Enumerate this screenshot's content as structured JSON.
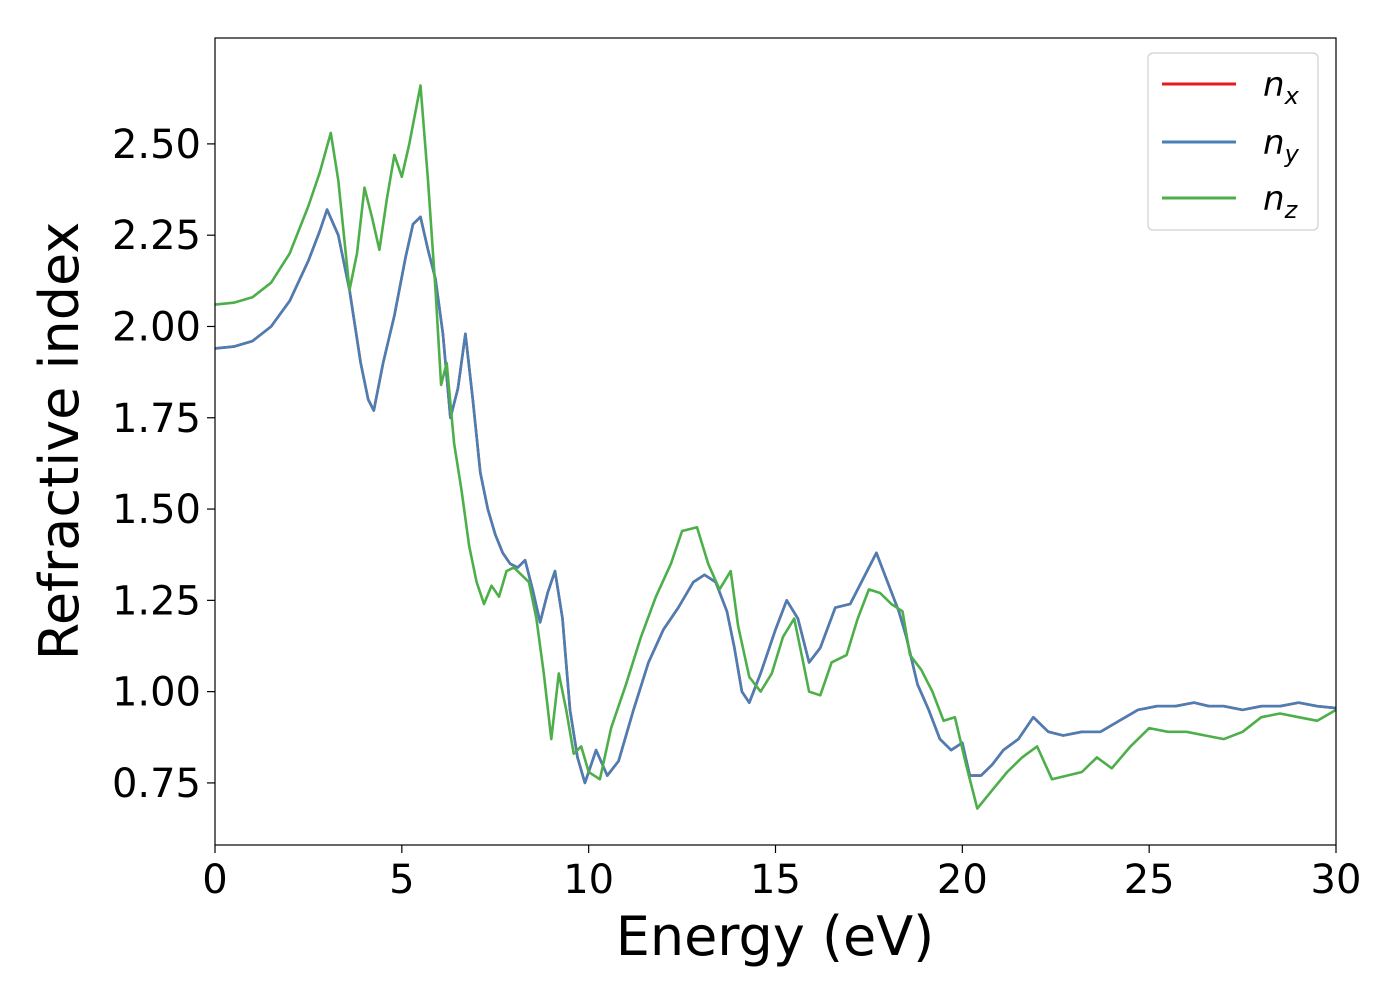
{
  "chart_data": {
    "type": "line",
    "title": "",
    "xlabel": "Energy (eV)",
    "ylabel": "Refractive index",
    "xlim": [
      0,
      30
    ],
    "ylim": [
      0.58,
      2.79
    ],
    "xticks": [
      0,
      5,
      10,
      15,
      20,
      25,
      30
    ],
    "xtick_labels": [
      "0",
      "5",
      "10",
      "15",
      "20",
      "25",
      "30"
    ],
    "yticks": [
      0.75,
      1.0,
      1.25,
      1.5,
      1.75,
      2.0,
      2.25,
      2.5
    ],
    "ytick_labels": [
      "0.75",
      "1.00",
      "1.25",
      "1.50",
      "1.75",
      "2.00",
      "2.25",
      "2.50"
    ],
    "grid": false,
    "legend_position": "top-right",
    "series": [
      {
        "name": "n",
        "subscript": "x",
        "color": "#e41a1c",
        "points": [
          [
            0,
            1.94
          ],
          [
            0.5,
            1.945
          ],
          [
            1,
            1.96
          ],
          [
            1.5,
            2.0
          ],
          [
            2,
            2.07
          ],
          [
            2.5,
            2.18
          ],
          [
            2.8,
            2.26
          ],
          [
            3.0,
            2.32
          ],
          [
            3.3,
            2.25
          ],
          [
            3.6,
            2.1
          ],
          [
            3.9,
            1.9
          ],
          [
            4.1,
            1.8
          ],
          [
            4.25,
            1.77
          ],
          [
            4.5,
            1.9
          ],
          [
            4.8,
            2.03
          ],
          [
            5.1,
            2.19
          ],
          [
            5.3,
            2.28
          ],
          [
            5.5,
            2.3
          ],
          [
            5.7,
            2.21
          ],
          [
            5.9,
            2.13
          ],
          [
            6.1,
            1.98
          ],
          [
            6.3,
            1.75
          ],
          [
            6.5,
            1.83
          ],
          [
            6.7,
            1.98
          ],
          [
            6.9,
            1.8
          ],
          [
            7.1,
            1.6
          ],
          [
            7.3,
            1.5
          ],
          [
            7.5,
            1.43
          ],
          [
            7.7,
            1.38
          ],
          [
            7.9,
            1.35
          ],
          [
            8.1,
            1.34
          ],
          [
            8.3,
            1.36
          ],
          [
            8.5,
            1.28
          ],
          [
            8.7,
            1.19
          ],
          [
            8.9,
            1.27
          ],
          [
            9.1,
            1.33
          ],
          [
            9.3,
            1.2
          ],
          [
            9.5,
            0.95
          ],
          [
            9.7,
            0.82
          ],
          [
            9.9,
            0.75
          ],
          [
            10.2,
            0.84
          ],
          [
            10.5,
            0.77
          ],
          [
            10.8,
            0.81
          ],
          [
            11.2,
            0.95
          ],
          [
            11.6,
            1.08
          ],
          [
            12.0,
            1.17
          ],
          [
            12.4,
            1.23
          ],
          [
            12.8,
            1.3
          ],
          [
            13.1,
            1.32
          ],
          [
            13.4,
            1.3
          ],
          [
            13.7,
            1.22
          ],
          [
            13.9,
            1.12
          ],
          [
            14.1,
            1.0
          ],
          [
            14.3,
            0.97
          ],
          [
            14.6,
            1.05
          ],
          [
            15.0,
            1.17
          ],
          [
            15.3,
            1.25
          ],
          [
            15.6,
            1.2
          ],
          [
            15.9,
            1.08
          ],
          [
            16.2,
            1.12
          ],
          [
            16.6,
            1.23
          ],
          [
            17.0,
            1.24
          ],
          [
            17.3,
            1.3
          ],
          [
            17.7,
            1.38
          ],
          [
            18.0,
            1.3
          ],
          [
            18.3,
            1.22
          ],
          [
            18.5,
            1.15
          ],
          [
            18.8,
            1.02
          ],
          [
            19.1,
            0.95
          ],
          [
            19.4,
            0.87
          ],
          [
            19.7,
            0.84
          ],
          [
            20.0,
            0.86
          ],
          [
            20.2,
            0.77
          ],
          [
            20.5,
            0.77
          ],
          [
            20.8,
            0.8
          ],
          [
            21.1,
            0.84
          ],
          [
            21.5,
            0.87
          ],
          [
            21.9,
            0.93
          ],
          [
            22.3,
            0.89
          ],
          [
            22.7,
            0.88
          ],
          [
            23.2,
            0.89
          ],
          [
            23.7,
            0.89
          ],
          [
            24.2,
            0.92
          ],
          [
            24.7,
            0.95
          ],
          [
            25.2,
            0.96
          ],
          [
            25.7,
            0.96
          ],
          [
            26.2,
            0.97
          ],
          [
            26.6,
            0.96
          ],
          [
            27.0,
            0.96
          ],
          [
            27.5,
            0.95
          ],
          [
            28.0,
            0.96
          ],
          [
            28.5,
            0.96
          ],
          [
            29.0,
            0.97
          ],
          [
            29.5,
            0.96
          ],
          [
            30,
            0.955
          ]
        ]
      },
      {
        "name": "n",
        "subscript": "y",
        "color": "#4a7fb5",
        "points": [
          [
            0,
            1.94
          ],
          [
            0.5,
            1.945
          ],
          [
            1,
            1.96
          ],
          [
            1.5,
            2.0
          ],
          [
            2,
            2.07
          ],
          [
            2.5,
            2.18
          ],
          [
            2.8,
            2.26
          ],
          [
            3.0,
            2.32
          ],
          [
            3.3,
            2.25
          ],
          [
            3.6,
            2.1
          ],
          [
            3.9,
            1.9
          ],
          [
            4.1,
            1.8
          ],
          [
            4.25,
            1.77
          ],
          [
            4.5,
            1.9
          ],
          [
            4.8,
            2.03
          ],
          [
            5.1,
            2.19
          ],
          [
            5.3,
            2.28
          ],
          [
            5.5,
            2.3
          ],
          [
            5.7,
            2.21
          ],
          [
            5.9,
            2.13
          ],
          [
            6.1,
            1.98
          ],
          [
            6.3,
            1.75
          ],
          [
            6.5,
            1.83
          ],
          [
            6.7,
            1.98
          ],
          [
            6.9,
            1.8
          ],
          [
            7.1,
            1.6
          ],
          [
            7.3,
            1.5
          ],
          [
            7.5,
            1.43
          ],
          [
            7.7,
            1.38
          ],
          [
            7.9,
            1.35
          ],
          [
            8.1,
            1.34
          ],
          [
            8.3,
            1.36
          ],
          [
            8.5,
            1.28
          ],
          [
            8.7,
            1.19
          ],
          [
            8.9,
            1.27
          ],
          [
            9.1,
            1.33
          ],
          [
            9.3,
            1.2
          ],
          [
            9.5,
            0.95
          ],
          [
            9.7,
            0.82
          ],
          [
            9.9,
            0.75
          ],
          [
            10.2,
            0.84
          ],
          [
            10.5,
            0.77
          ],
          [
            10.8,
            0.81
          ],
          [
            11.2,
            0.95
          ],
          [
            11.6,
            1.08
          ],
          [
            12.0,
            1.17
          ],
          [
            12.4,
            1.23
          ],
          [
            12.8,
            1.3
          ],
          [
            13.1,
            1.32
          ],
          [
            13.4,
            1.3
          ],
          [
            13.7,
            1.22
          ],
          [
            13.9,
            1.12
          ],
          [
            14.1,
            1.0
          ],
          [
            14.3,
            0.97
          ],
          [
            14.6,
            1.05
          ],
          [
            15.0,
            1.17
          ],
          [
            15.3,
            1.25
          ],
          [
            15.6,
            1.2
          ],
          [
            15.9,
            1.08
          ],
          [
            16.2,
            1.12
          ],
          [
            16.6,
            1.23
          ],
          [
            17.0,
            1.24
          ],
          [
            17.3,
            1.3
          ],
          [
            17.7,
            1.38
          ],
          [
            18.0,
            1.3
          ],
          [
            18.3,
            1.22
          ],
          [
            18.5,
            1.15
          ],
          [
            18.8,
            1.02
          ],
          [
            19.1,
            0.95
          ],
          [
            19.4,
            0.87
          ],
          [
            19.7,
            0.84
          ],
          [
            20.0,
            0.86
          ],
          [
            20.2,
            0.77
          ],
          [
            20.5,
            0.77
          ],
          [
            20.8,
            0.8
          ],
          [
            21.1,
            0.84
          ],
          [
            21.5,
            0.87
          ],
          [
            21.9,
            0.93
          ],
          [
            22.3,
            0.89
          ],
          [
            22.7,
            0.88
          ],
          [
            23.2,
            0.89
          ],
          [
            23.7,
            0.89
          ],
          [
            24.2,
            0.92
          ],
          [
            24.7,
            0.95
          ],
          [
            25.2,
            0.96
          ],
          [
            25.7,
            0.96
          ],
          [
            26.2,
            0.97
          ],
          [
            26.6,
            0.96
          ],
          [
            27.0,
            0.96
          ],
          [
            27.5,
            0.95
          ],
          [
            28.0,
            0.96
          ],
          [
            28.5,
            0.96
          ],
          [
            29.0,
            0.97
          ],
          [
            29.5,
            0.96
          ],
          [
            30,
            0.955
          ]
        ]
      },
      {
        "name": "n",
        "subscript": "z",
        "color": "#4daf4a",
        "points": [
          [
            0,
            2.06
          ],
          [
            0.5,
            2.065
          ],
          [
            1,
            2.08
          ],
          [
            1.5,
            2.12
          ],
          [
            2,
            2.2
          ],
          [
            2.5,
            2.33
          ],
          [
            2.8,
            2.42
          ],
          [
            3.1,
            2.53
          ],
          [
            3.3,
            2.4
          ],
          [
            3.6,
            2.1
          ],
          [
            3.8,
            2.2
          ],
          [
            4.0,
            2.38
          ],
          [
            4.2,
            2.3
          ],
          [
            4.4,
            2.21
          ],
          [
            4.6,
            2.35
          ],
          [
            4.8,
            2.47
          ],
          [
            5.0,
            2.41
          ],
          [
            5.2,
            2.5
          ],
          [
            5.5,
            2.66
          ],
          [
            5.7,
            2.4
          ],
          [
            5.9,
            2.1
          ],
          [
            6.05,
            1.84
          ],
          [
            6.2,
            1.9
          ],
          [
            6.4,
            1.68
          ],
          [
            6.6,
            1.55
          ],
          [
            6.8,
            1.4
          ],
          [
            7.0,
            1.3
          ],
          [
            7.2,
            1.24
          ],
          [
            7.4,
            1.29
          ],
          [
            7.6,
            1.26
          ],
          [
            7.8,
            1.33
          ],
          [
            8.0,
            1.34
          ],
          [
            8.2,
            1.32
          ],
          [
            8.4,
            1.3
          ],
          [
            8.6,
            1.2
          ],
          [
            8.8,
            1.05
          ],
          [
            9.0,
            0.87
          ],
          [
            9.2,
            1.05
          ],
          [
            9.4,
            0.95
          ],
          [
            9.6,
            0.83
          ],
          [
            9.8,
            0.85
          ],
          [
            10.0,
            0.78
          ],
          [
            10.3,
            0.76
          ],
          [
            10.6,
            0.9
          ],
          [
            11.0,
            1.02
          ],
          [
            11.4,
            1.15
          ],
          [
            11.8,
            1.26
          ],
          [
            12.2,
            1.35
          ],
          [
            12.5,
            1.44
          ],
          [
            12.9,
            1.45
          ],
          [
            13.2,
            1.35
          ],
          [
            13.5,
            1.28
          ],
          [
            13.8,
            1.33
          ],
          [
            14.0,
            1.18
          ],
          [
            14.3,
            1.04
          ],
          [
            14.6,
            1.0
          ],
          [
            14.9,
            1.05
          ],
          [
            15.2,
            1.15
          ],
          [
            15.5,
            1.2
          ],
          [
            15.7,
            1.1
          ],
          [
            15.9,
            1.0
          ],
          [
            16.2,
            0.99
          ],
          [
            16.5,
            1.08
          ],
          [
            16.9,
            1.1
          ],
          [
            17.2,
            1.2
          ],
          [
            17.5,
            1.28
          ],
          [
            17.8,
            1.27
          ],
          [
            18.1,
            1.24
          ],
          [
            18.4,
            1.22
          ],
          [
            18.6,
            1.1
          ],
          [
            18.9,
            1.06
          ],
          [
            19.2,
            1.0
          ],
          [
            19.5,
            0.92
          ],
          [
            19.8,
            0.93
          ],
          [
            20.1,
            0.8
          ],
          [
            20.4,
            0.68
          ],
          [
            20.8,
            0.73
          ],
          [
            21.2,
            0.78
          ],
          [
            21.6,
            0.82
          ],
          [
            22.0,
            0.85
          ],
          [
            22.4,
            0.76
          ],
          [
            22.8,
            0.77
          ],
          [
            23.2,
            0.78
          ],
          [
            23.6,
            0.82
          ],
          [
            24.0,
            0.79
          ],
          [
            24.5,
            0.85
          ],
          [
            25.0,
            0.9
          ],
          [
            25.5,
            0.89
          ],
          [
            26.0,
            0.89
          ],
          [
            26.5,
            0.88
          ],
          [
            27.0,
            0.87
          ],
          [
            27.5,
            0.89
          ],
          [
            28.0,
            0.93
          ],
          [
            28.5,
            0.94
          ],
          [
            29.0,
            0.93
          ],
          [
            29.5,
            0.92
          ],
          [
            30,
            0.95
          ]
        ]
      }
    ]
  }
}
